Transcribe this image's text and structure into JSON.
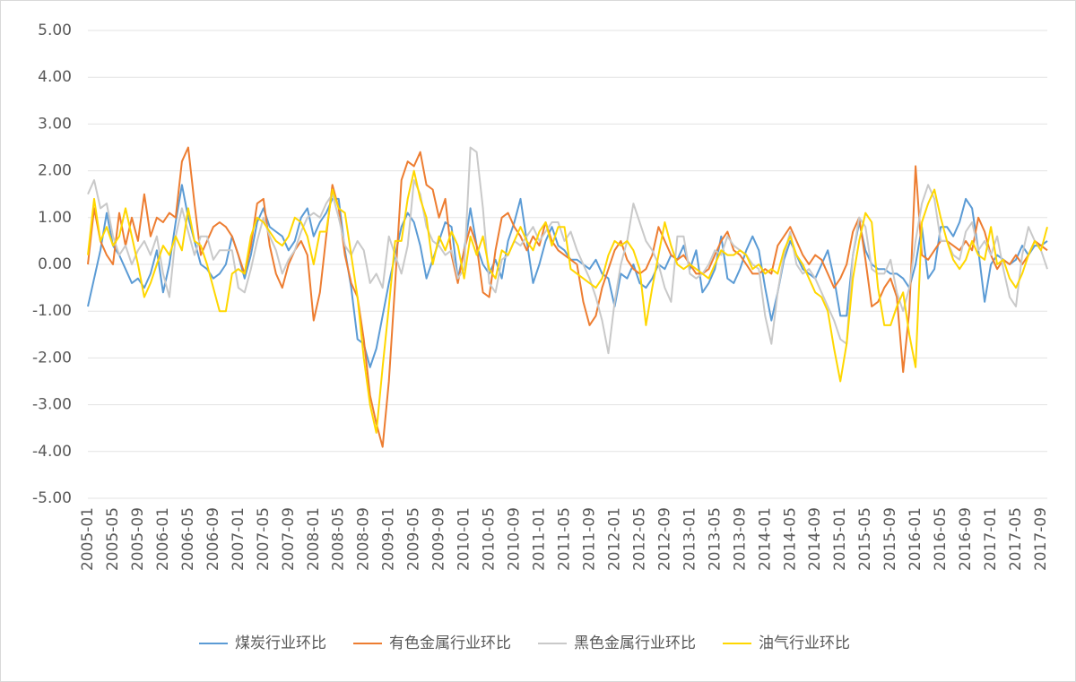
{
  "chart_data": {
    "type": "line",
    "categories": [
      "2005-01",
      null,
      null,
      null,
      "2005-05",
      null,
      null,
      null,
      "2005-09",
      null,
      null,
      null,
      "2006-01",
      null,
      null,
      null,
      "2006-05",
      null,
      null,
      null,
      "2006-09",
      null,
      null,
      null,
      "2007-01",
      null,
      null,
      null,
      "2007-05",
      null,
      null,
      null,
      "2007-09",
      null,
      null,
      null,
      "2008-01",
      null,
      null,
      null,
      "2008-05",
      null,
      null,
      null,
      "2008-09",
      null,
      null,
      null,
      "2009-01",
      null,
      null,
      null,
      "2009-05",
      null,
      null,
      null,
      "2009-09",
      null,
      null,
      null,
      "2010-01",
      null,
      null,
      null,
      "2010-05",
      null,
      null,
      null,
      "2010-09",
      null,
      null,
      null,
      "2011-01",
      null,
      null,
      null,
      "2011-05",
      null,
      null,
      null,
      "2011-09",
      null,
      null,
      null,
      "2012-01",
      null,
      null,
      null,
      "2012-05",
      null,
      null,
      null,
      "2012-09",
      null,
      null,
      null,
      "2013-01",
      null,
      null,
      null,
      "2013-05",
      null,
      null,
      null,
      "2013-09",
      null,
      null,
      null,
      "2014-01",
      null,
      null,
      null,
      "2014-05",
      null,
      null,
      null,
      "2014-09",
      null,
      null,
      null,
      "2015-01",
      null,
      null,
      null,
      "2015-05",
      null,
      null,
      null,
      "2015-09",
      null,
      null,
      null,
      "2016-01",
      null,
      null,
      null,
      "2016-05",
      null,
      null,
      null,
      "2016-09",
      null,
      null,
      null,
      "2017-01",
      null,
      null,
      null,
      "2017-05",
      null,
      null,
      null,
      "2017-09",
      null
    ],
    "series": [
      {
        "name": "煤炭行业环比",
        "color": "#5b9bd5",
        "values": [
          -0.9,
          -0.3,
          0.3,
          1.1,
          0.4,
          0.2,
          -0.1,
          -0.4,
          -0.3,
          -0.5,
          -0.2,
          0.3,
          -0.6,
          0.0,
          0.9,
          1.7,
          1.0,
          0.5,
          0.0,
          -0.1,
          -0.3,
          -0.2,
          0.0,
          0.6,
          0.2,
          -0.3,
          0.2,
          0.9,
          1.2,
          0.8,
          0.7,
          0.6,
          0.3,
          0.5,
          1.0,
          1.2,
          0.6,
          0.9,
          1.1,
          1.4,
          1.4,
          0.3,
          -0.5,
          -1.6,
          -1.7,
          -2.2,
          -1.8,
          -1.1,
          -0.4,
          0.2,
          0.8,
          1.1,
          0.9,
          0.4,
          -0.3,
          0.1,
          0.5,
          0.9,
          0.8,
          -0.3,
          0.3,
          1.2,
          0.4,
          0.0,
          -0.2,
          0.1,
          -0.3,
          0.5,
          0.9,
          1.4,
          0.5,
          -0.4,
          0.0,
          0.5,
          0.8,
          0.4,
          0.3,
          0.1,
          0.1,
          0.0,
          -0.1,
          0.1,
          -0.2,
          -0.3,
          -0.9,
          -0.2,
          -0.3,
          0.0,
          -0.4,
          -0.5,
          -0.3,
          0.0,
          -0.1,
          0.2,
          0.1,
          0.4,
          -0.1,
          0.3,
          -0.6,
          -0.4,
          -0.1,
          0.6,
          -0.3,
          -0.4,
          -0.1,
          0.3,
          0.6,
          0.3,
          -0.5,
          -1.2,
          -0.6,
          0.1,
          0.5,
          0.2,
          -0.1,
          -0.2,
          -0.3,
          0.0,
          0.3,
          -0.3,
          -1.1,
          -1.1,
          0.2,
          0.9,
          0.3,
          0.0,
          -0.1,
          -0.1,
          -0.2,
          -0.2,
          -0.3,
          -0.5,
          0.0,
          0.8,
          -0.3,
          -0.1,
          0.8,
          0.8,
          0.6,
          0.9,
          1.4,
          1.2,
          0.3,
          -0.8,
          0.0,
          0.2,
          0.1,
          0.0,
          0.1,
          0.4,
          0.2,
          0.4,
          0.4,
          0.5
        ]
      },
      {
        "name": "有色金属行业环比",
        "color": "#ed7d31",
        "values": [
          0.0,
          1.2,
          0.5,
          0.2,
          0.0,
          1.1,
          0.4,
          1.0,
          0.5,
          1.5,
          0.6,
          1.0,
          0.9,
          1.1,
          1.0,
          2.2,
          2.5,
          1.3,
          0.2,
          0.5,
          0.8,
          0.9,
          0.8,
          0.6,
          0.2,
          -0.2,
          0.4,
          1.3,
          1.4,
          0.4,
          -0.2,
          -0.5,
          0.0,
          0.3,
          0.5,
          0.2,
          -1.2,
          -0.6,
          0.6,
          1.7,
          1.2,
          0.2,
          -0.4,
          -0.7,
          -1.6,
          -2.8,
          -3.4,
          -3.9,
          -2.5,
          -0.4,
          1.8,
          2.2,
          2.1,
          2.4,
          1.7,
          1.6,
          1.0,
          1.4,
          0.2,
          -0.4,
          0.3,
          0.8,
          0.4,
          -0.6,
          -0.7,
          0.3,
          1.0,
          1.1,
          0.8,
          0.6,
          0.3,
          0.6,
          0.4,
          0.9,
          0.5,
          0.3,
          0.2,
          0.1,
          0.0,
          -0.8,
          -1.3,
          -1.1,
          -0.5,
          -0.1,
          0.3,
          0.5,
          0.1,
          -0.1,
          -0.2,
          -0.1,
          0.2,
          0.8,
          0.5,
          0.2,
          0.1,
          0.2,
          0.0,
          -0.2,
          -0.2,
          -0.1,
          0.2,
          0.5,
          0.7,
          0.3,
          0.2,
          0.0,
          -0.2,
          -0.2,
          -0.1,
          -0.2,
          0.4,
          0.6,
          0.8,
          0.5,
          0.2,
          0.0,
          0.2,
          0.1,
          -0.2,
          -0.5,
          -0.3,
          0.0,
          0.7,
          1.0,
          0.1,
          -0.9,
          -0.8,
          -0.5,
          -0.3,
          -0.7,
          -2.3,
          -1.0,
          2.1,
          0.2,
          0.1,
          0.3,
          0.5,
          0.5,
          0.4,
          0.3,
          0.5,
          0.3,
          1.0,
          0.7,
          0.2,
          -0.1,
          0.1,
          0.0,
          0.2,
          0.0,
          0.2,
          0.5,
          0.4,
          0.3
        ]
      },
      {
        "name": "黑色金属行业环比",
        "color": "#c9c9c9",
        "values": [
          1.5,
          1.8,
          1.2,
          1.3,
          0.6,
          0.2,
          0.4,
          0.0,
          0.3,
          0.5,
          0.2,
          0.6,
          -0.2,
          -0.7,
          0.6,
          1.2,
          0.7,
          0.2,
          0.6,
          0.6,
          0.1,
          0.3,
          0.3,
          0.3,
          -0.5,
          -0.6,
          -0.1,
          0.5,
          1.0,
          0.6,
          0.3,
          -0.2,
          0.1,
          0.3,
          0.7,
          1.0,
          1.1,
          1.0,
          1.3,
          1.5,
          1.0,
          0.4,
          0.2,
          0.5,
          0.3,
          -0.4,
          -0.2,
          -0.5,
          0.6,
          0.2,
          -0.2,
          0.4,
          1.8,
          1.5,
          0.8,
          0.5,
          0.4,
          0.2,
          0.3,
          -0.3,
          -0.1,
          2.5,
          2.4,
          1.2,
          -0.4,
          -0.6,
          0.1,
          0.2,
          0.5,
          0.4,
          0.6,
          0.8,
          0.5,
          0.7,
          0.9,
          0.9,
          0.5,
          0.7,
          0.3,
          0.0,
          -0.3,
          -0.7,
          -1.2,
          -1.9,
          -0.8,
          0.0,
          0.5,
          1.3,
          0.9,
          0.5,
          0.3,
          0.0,
          -0.5,
          -0.8,
          0.6,
          0.6,
          -0.2,
          -0.3,
          -0.2,
          0.0,
          0.3,
          0.2,
          0.6,
          0.4,
          0.3,
          0.2,
          0.0,
          -0.1,
          -1.1,
          -1.7,
          -0.6,
          0.2,
          0.7,
          0.0,
          -0.2,
          -0.1,
          -0.3,
          -0.6,
          -0.9,
          -1.2,
          -1.6,
          -1.7,
          0.2,
          1.0,
          0.8,
          -0.1,
          -0.2,
          -0.2,
          0.1,
          -0.6,
          -1.0,
          -0.5,
          0.5,
          1.3,
          1.7,
          1.4,
          0.5,
          0.5,
          0.2,
          0.1,
          0.7,
          0.9,
          0.3,
          0.5,
          0.2,
          0.6,
          -0.1,
          -0.7,
          -0.9,
          0.2,
          0.8,
          0.5,
          0.3,
          -0.1
        ]
      },
      {
        "name": "油气行业环比",
        "color": "#ffd700",
        "values": [
          0.2,
          1.4,
          0.5,
          0.8,
          0.4,
          0.6,
          1.2,
          0.6,
          0.0,
          -0.7,
          -0.4,
          0.0,
          0.4,
          0.2,
          0.6,
          0.3,
          1.2,
          0.5,
          0.4,
          0.0,
          -0.5,
          -1.0,
          -1.0,
          -0.2,
          -0.1,
          -0.2,
          0.6,
          1.0,
          0.9,
          0.7,
          0.5,
          0.4,
          0.6,
          1.0,
          0.9,
          0.6,
          0.0,
          0.7,
          0.7,
          1.6,
          1.2,
          1.1,
          0.2,
          -0.7,
          -2.0,
          -3.0,
          -3.6,
          -2.2,
          -0.9,
          0.5,
          0.5,
          1.4,
          2.0,
          1.4,
          1.0,
          0.0,
          0.6,
          0.3,
          0.7,
          0.4,
          -0.3,
          0.6,
          0.2,
          0.6,
          -0.1,
          -0.3,
          0.3,
          0.2,
          0.5,
          0.8,
          0.5,
          0.3,
          0.7,
          0.9,
          0.4,
          0.8,
          0.8,
          -0.1,
          -0.2,
          -0.3,
          -0.4,
          -0.5,
          -0.3,
          0.2,
          0.5,
          0.4,
          0.5,
          0.3,
          -0.1,
          -1.3,
          -0.5,
          0.2,
          0.9,
          0.4,
          0.0,
          -0.1,
          0.0,
          -0.1,
          -0.2,
          -0.3,
          0.0,
          0.3,
          0.2,
          0.2,
          0.3,
          0.2,
          -0.1,
          0.0,
          -0.2,
          -0.1,
          -0.2,
          0.3,
          0.6,
          0.2,
          0.0,
          -0.3,
          -0.6,
          -0.7,
          -1.0,
          -1.8,
          -2.5,
          -1.7,
          -0.3,
          0.5,
          1.1,
          0.9,
          -0.5,
          -1.3,
          -1.3,
          -0.9,
          -0.6,
          -1.5,
          -2.2,
          0.9,
          1.3,
          1.6,
          1.0,
          0.5,
          0.1,
          -0.1,
          0.1,
          0.5,
          0.2,
          0.1,
          0.8,
          0.0,
          0.1,
          -0.3,
          -0.5,
          -0.2,
          0.2,
          0.5,
          0.3,
          0.8
        ]
      }
    ],
    "ylim": [
      -5,
      5
    ],
    "yticks": [
      {
        "value": -5,
        "label": "-5.00"
      },
      {
        "value": -4,
        "label": "-4.00"
      },
      {
        "value": -3,
        "label": "-3.00"
      },
      {
        "value": -2,
        "label": "-2.00"
      },
      {
        "value": -1,
        "label": "-1.00"
      },
      {
        "value": 0,
        "label": "0.00"
      },
      {
        "value": 1,
        "label": "1.00"
      },
      {
        "value": 2,
        "label": "2.00"
      },
      {
        "value": 3,
        "label": "3.00"
      },
      {
        "value": 4,
        "label": "4.00"
      },
      {
        "value": 5,
        "label": "5.00"
      }
    ],
    "grid": true,
    "legend": "bottom"
  }
}
